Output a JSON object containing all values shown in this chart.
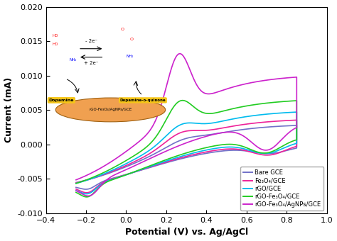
{
  "title": "",
  "xlabel": "Potential (V) vs. Ag/AgCl",
  "ylabel": "Current (mA)",
  "xlim": [
    -0.4,
    1.0
  ],
  "ylim": [
    -0.01,
    0.02
  ],
  "xticks": [
    -0.4,
    -0.2,
    0.0,
    0.2,
    0.4,
    0.6,
    0.8,
    1.0
  ],
  "yticks": [
    -0.01,
    -0.005,
    0.0,
    0.005,
    0.01,
    0.015,
    0.02
  ],
  "colors": {
    "bare_gce": "#7070c8",
    "fe3o4_gce": "#ee2299",
    "rgo_gce": "#00bbee",
    "rgo_fe3o4_gce": "#22cc22",
    "rgo_fe3o4_agnps_gce": "#cc22cc"
  },
  "legend": [
    "Bare GCE",
    "Fe₃O₄/GCE",
    "rGO/GCE",
    "rGO-Fe₃O₄/GCE",
    "rGO-Fe₃O₄/AgNPs/GCE"
  ],
  "background_color": "#ffffff"
}
